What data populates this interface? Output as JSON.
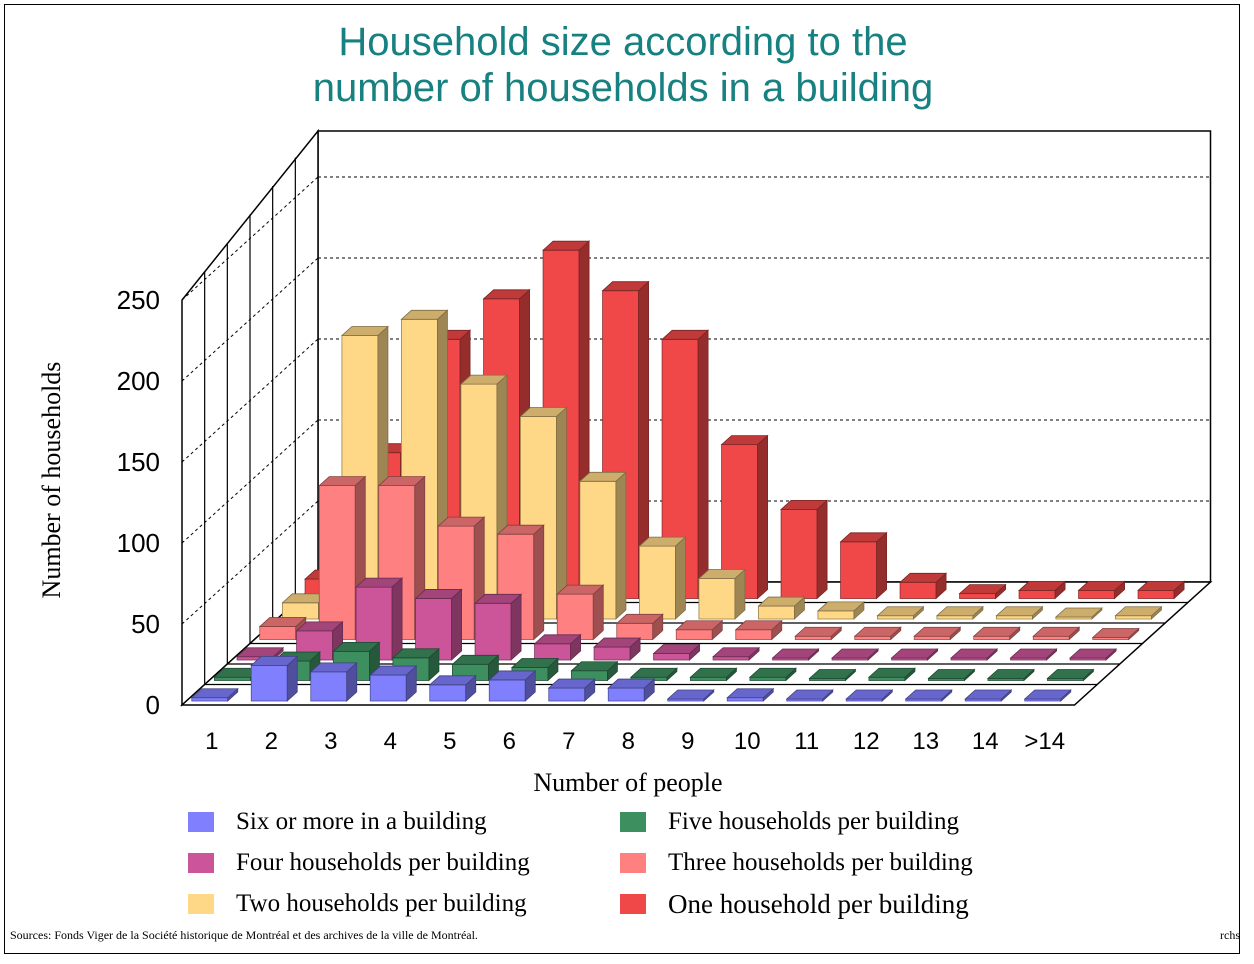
{
  "title_line1": "Household size according to the",
  "title_line2": "number of households in a building",
  "chart_data": {
    "type": "bar",
    "title": "Household size according to the number of households in a building",
    "xlabel": "Number of people",
    "ylabel": "Number of households",
    "categories": [
      "1",
      "2",
      "3",
      "4",
      "5",
      "6",
      "7",
      "8",
      "9",
      "10",
      "11",
      "12",
      "13",
      "14",
      ">14"
    ],
    "yticks": [
      "0",
      "50",
      "100",
      "150",
      "200",
      "250"
    ],
    "ylim": [
      0,
      250
    ],
    "grid": true,
    "legend_position": "bottom",
    "series": [
      {
        "name": "Six or more in a building",
        "color": "#8080ff",
        "values": [
          2,
          22,
          18,
          16,
          10,
          13,
          8,
          8,
          1,
          2,
          0,
          0,
          0,
          0,
          0
        ]
      },
      {
        "name": "Five households per building",
        "color": "#3d8f5f",
        "values": [
          2,
          12,
          18,
          14,
          10,
          8,
          6,
          2,
          2,
          2,
          0,
          2,
          0,
          0,
          0
        ]
      },
      {
        "name": "Four households per building",
        "color": "#cc5599",
        "values": [
          2,
          18,
          45,
          38,
          35,
          10,
          8,
          4,
          2,
          0,
          0,
          0,
          0,
          0,
          0
        ]
      },
      {
        "name": "Three households per building",
        "color": "#ff8080",
        "values": [
          8,
          95,
          95,
          70,
          65,
          28,
          10,
          6,
          6,
          2,
          2,
          2,
          2,
          2,
          0
        ]
      },
      {
        "name": "Two households per building",
        "color": "#ffd887",
        "values": [
          10,
          175,
          185,
          145,
          125,
          85,
          45,
          25,
          8,
          5,
          2,
          2,
          2,
          0,
          2
        ]
      },
      {
        "name": "One household per building",
        "color": "#f04848",
        "values": [
          12,
          90,
          160,
          185,
          215,
          190,
          160,
          95,
          55,
          35,
          10,
          3,
          5,
          5,
          5
        ]
      }
    ],
    "notes": [
      "Sources: Fonds Viger de la Société historique de Montréal et des archives de la ville de Montréal.",
      "rchs"
    ]
  },
  "legend": [
    {
      "label": "Six or more in a building",
      "color": "#8080ff"
    },
    {
      "label": "Five households per building",
      "color": "#3d8f5f"
    },
    {
      "label": "Four households per building",
      "color": "#cc5599"
    },
    {
      "label": "Three households per building",
      "color": "#ff8080"
    },
    {
      "label": "Two households per building",
      "color": "#ffd887"
    },
    {
      "label": "One household per building",
      "color": "#f04848"
    }
  ],
  "source_text": "Sources: Fonds Viger de la Société historique de Montréal et des archives de la ville de Montréal.",
  "credit_text": "rchs"
}
